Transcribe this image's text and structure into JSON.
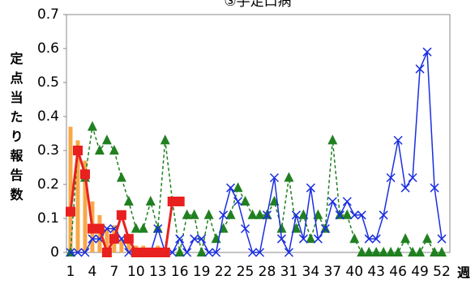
{
  "chart_data": {
    "type": "line",
    "title": "③手足口病",
    "y_label": "定点当たり報告数",
    "x_label": "週",
    "categories": [
      "1",
      null,
      null,
      "4",
      null,
      null,
      "7",
      null,
      null,
      "10",
      null,
      null,
      "13",
      null,
      null,
      "16",
      null,
      null,
      "19",
      null,
      null,
      "22",
      null,
      null,
      "25",
      null,
      null,
      "28",
      null,
      null,
      "31",
      null,
      null,
      "34",
      null,
      null,
      "37",
      null,
      null,
      "40",
      null,
      null,
      "43",
      null,
      null,
      "46",
      null,
      null,
      "49",
      null,
      null,
      "52"
    ],
    "ylim": [
      0,
      0.7
    ],
    "yticks": [
      0,
      0.1,
      0.2,
      0.3,
      0.4,
      0.5,
      0.6,
      0.7
    ],
    "series": [
      {
        "type": "bar",
        "color": "#f8a848",
        "values": [
          0.37,
          0.33,
          0.27,
          0.15,
          0.11,
          0.07,
          0.08,
          0.04,
          0.03,
          0.02,
          0.02,
          0,
          0.02,
          0,
          0,
          0,
          null,
          null,
          null,
          null,
          null,
          null,
          null,
          null,
          null,
          null,
          null,
          null,
          null,
          null,
          null,
          null,
          null,
          null,
          null,
          null,
          null,
          null,
          null,
          null,
          null,
          null,
          null,
          null,
          null,
          null,
          null,
          null,
          null,
          null,
          null,
          null
        ]
      },
      {
        "type": "line",
        "marker": "triangle",
        "dashed": true,
        "color": "#208020",
        "values": [
          0,
          0.3,
          0.22,
          0.37,
          0.3,
          0.33,
          0.3,
          0.22,
          0.15,
          0.07,
          0.07,
          0.15,
          0.07,
          0.33,
          0.15,
          0,
          0.11,
          0.11,
          0,
          0.11,
          0.04,
          0.07,
          0.11,
          0.19,
          0.15,
          0.11,
          0.11,
          0.11,
          0.15,
          0.07,
          0.22,
          0.07,
          0.11,
          0.04,
          0.11,
          0.07,
          0.33,
          0.11,
          0.11,
          0.04,
          0,
          0,
          0,
          0,
          0,
          0,
          0.04,
          0,
          0,
          0.04,
          0,
          0
        ]
      },
      {
        "type": "line",
        "marker": "x",
        "color": "#1a2ee0",
        "values": [
          0,
          0,
          0,
          0.04,
          0.04,
          0.07,
          0.07,
          0.04,
          0,
          0,
          0,
          0,
          0.07,
          0,
          0,
          0.04,
          0,
          0.04,
          0.04,
          0,
          0,
          0.11,
          0.19,
          0.15,
          0.07,
          0,
          0,
          0.11,
          0.22,
          0.04,
          0,
          0.11,
          0.04,
          0.19,
          0.04,
          0.07,
          0.15,
          0.11,
          0.15,
          0.11,
          0.11,
          0.04,
          0.04,
          0.11,
          0.22,
          0.33,
          0.19,
          0.22,
          0.54,
          0.59,
          0.19,
          0.04
        ]
      },
      {
        "type": "line",
        "marker": "square",
        "color": "#e82020",
        "width": 3,
        "values": [
          0.12,
          0.3,
          0.23,
          0.07,
          0.07,
          0,
          0.04,
          0.11,
          0.04,
          0,
          0,
          0,
          0,
          0,
          0.15,
          0.15,
          null,
          null,
          null,
          null,
          null,
          null,
          null,
          null,
          null,
          null,
          null,
          null,
          null,
          null,
          null,
          null,
          null,
          null,
          null,
          null,
          null,
          null,
          null,
          null,
          null,
          null,
          null,
          null,
          null,
          null,
          null,
          null,
          null,
          null,
          null,
          null
        ]
      }
    ]
  }
}
